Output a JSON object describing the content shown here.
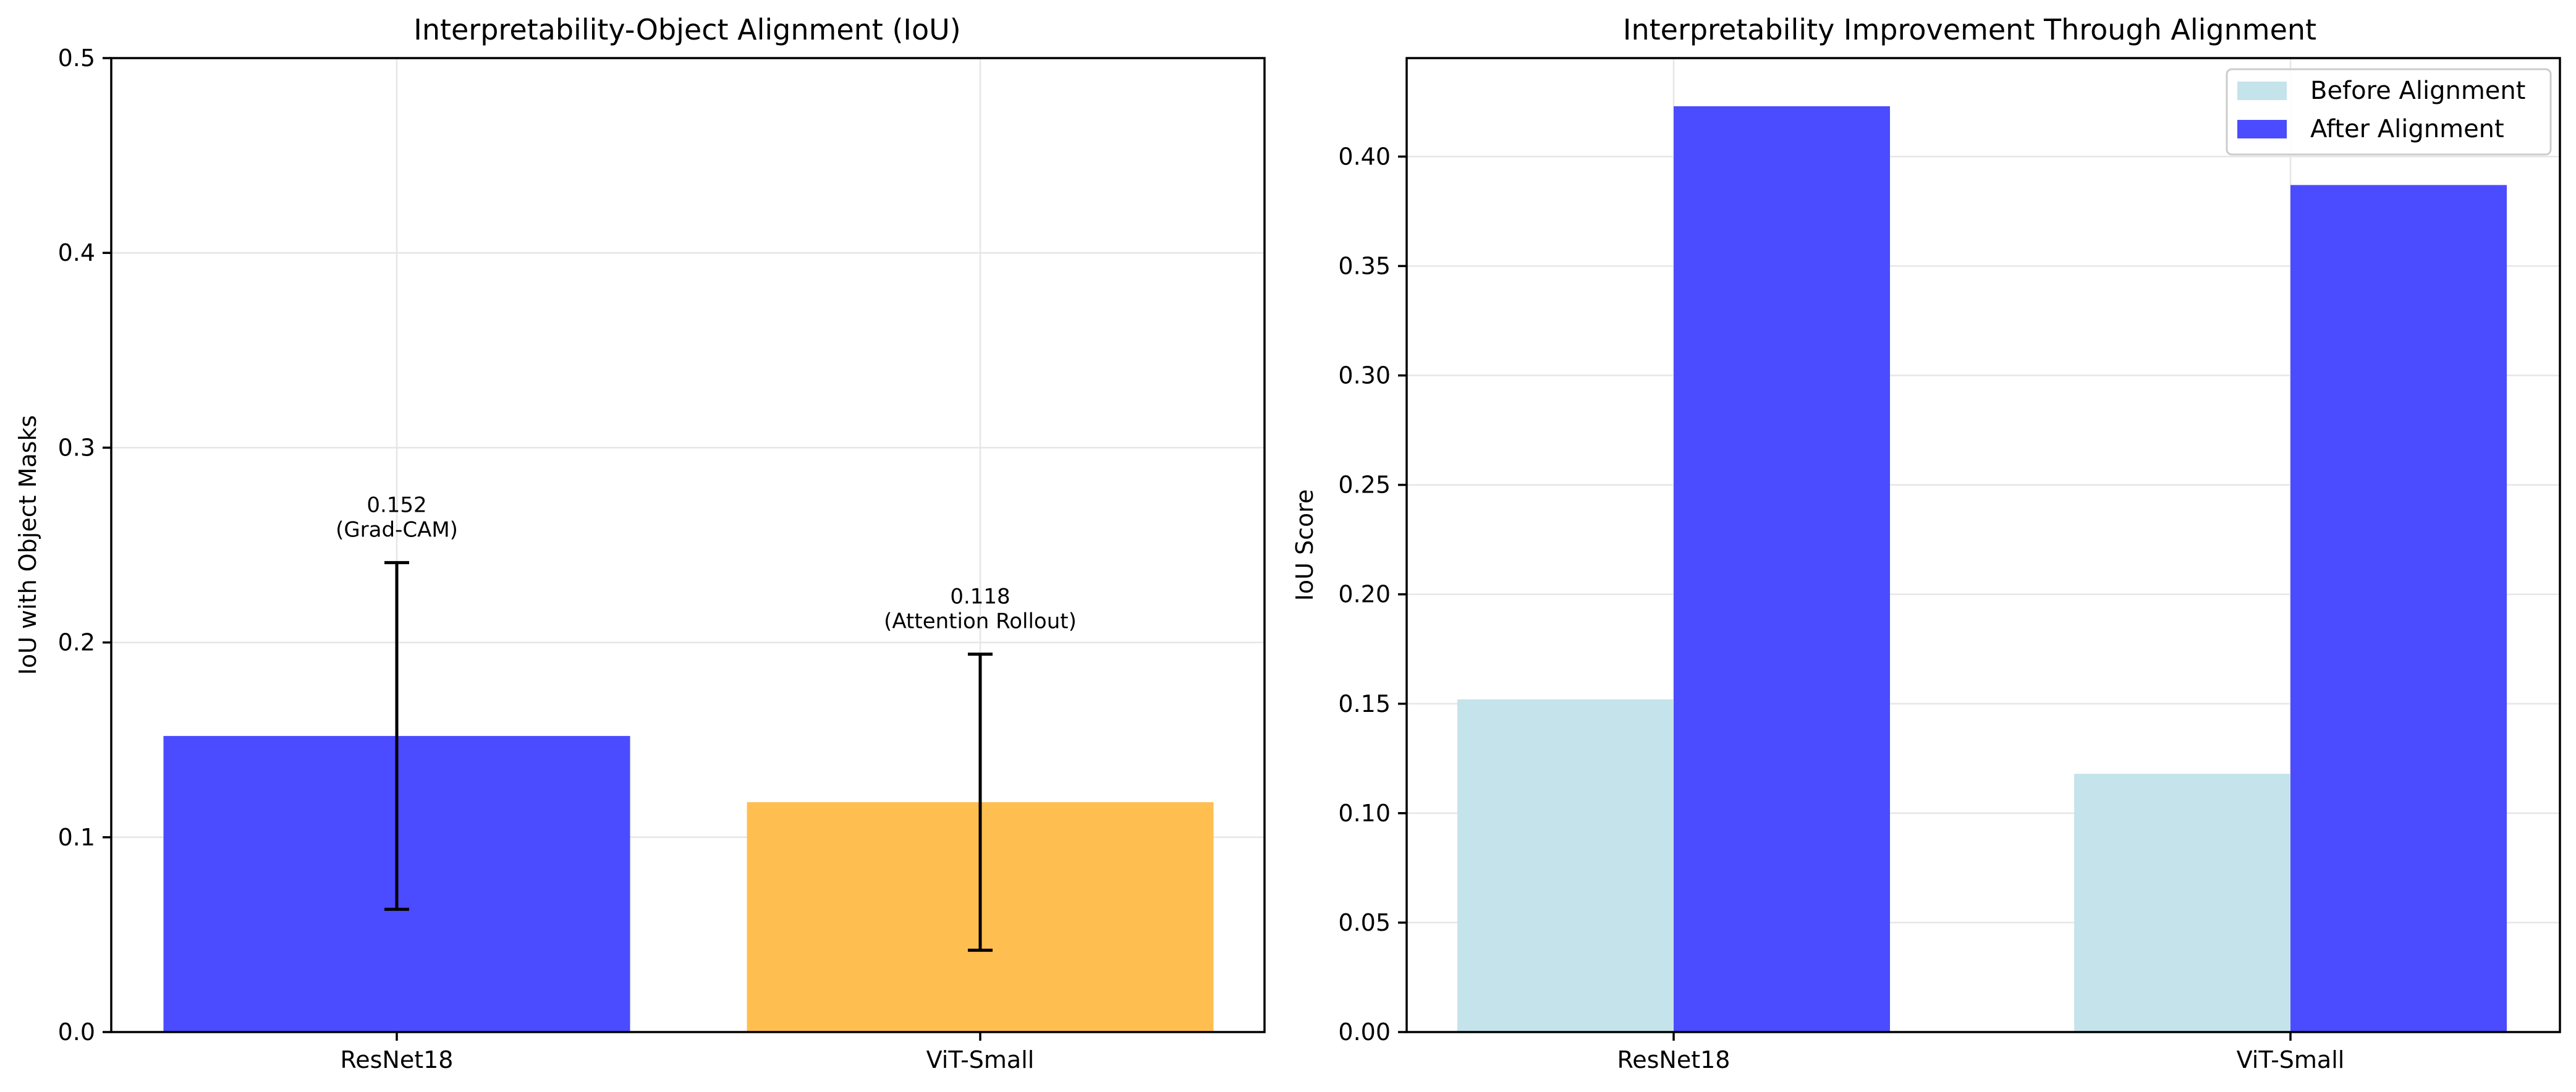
{
  "chart_data": [
    {
      "type": "bar",
      "title": "Interpretability-Object Alignment (IoU)",
      "xlabel": "",
      "ylabel": "IoU with Object Masks",
      "categories": [
        "ResNet18",
        "ViT-Small"
      ],
      "values": [
        0.152,
        0.118
      ],
      "errors": [
        0.089,
        0.076
      ],
      "colors": [
        "#4B4BFF",
        "#FFBF50"
      ],
      "annotations": [
        {
          "value": "0.152",
          "method": "(Grad-CAM)"
        },
        {
          "value": "0.118",
          "method": "(Attention Rollout)"
        }
      ],
      "ylim": [
        0,
        0.5
      ],
      "yticks": [
        0.0,
        0.1,
        0.2,
        0.3,
        0.4,
        0.5
      ],
      "ytick_labels": [
        "0.0",
        "0.1",
        "0.2",
        "0.3",
        "0.4",
        "0.5"
      ],
      "grid": true,
      "legend": "none"
    },
    {
      "type": "bar",
      "title": "Interpretability Improvement Through Alignment",
      "xlabel": "",
      "ylabel": "IoU Score",
      "categories": [
        "ResNet18",
        "ViT-Small"
      ],
      "series": [
        {
          "name": "Before Alignment",
          "values": [
            0.152,
            0.118
          ],
          "color": "#C4E3EB"
        },
        {
          "name": "After Alignment",
          "values": [
            0.423,
            0.387
          ],
          "color": "#4B4BFF"
        }
      ],
      "ylim": [
        0,
        0.445
      ],
      "yticks": [
        0.0,
        0.05,
        0.1,
        0.15,
        0.2,
        0.25,
        0.3,
        0.35,
        0.4
      ],
      "ytick_labels": [
        "0.00",
        "0.05",
        "0.10",
        "0.15",
        "0.20",
        "0.25",
        "0.30",
        "0.35",
        "0.40"
      ],
      "grid": true,
      "legend": "top-right"
    }
  ]
}
